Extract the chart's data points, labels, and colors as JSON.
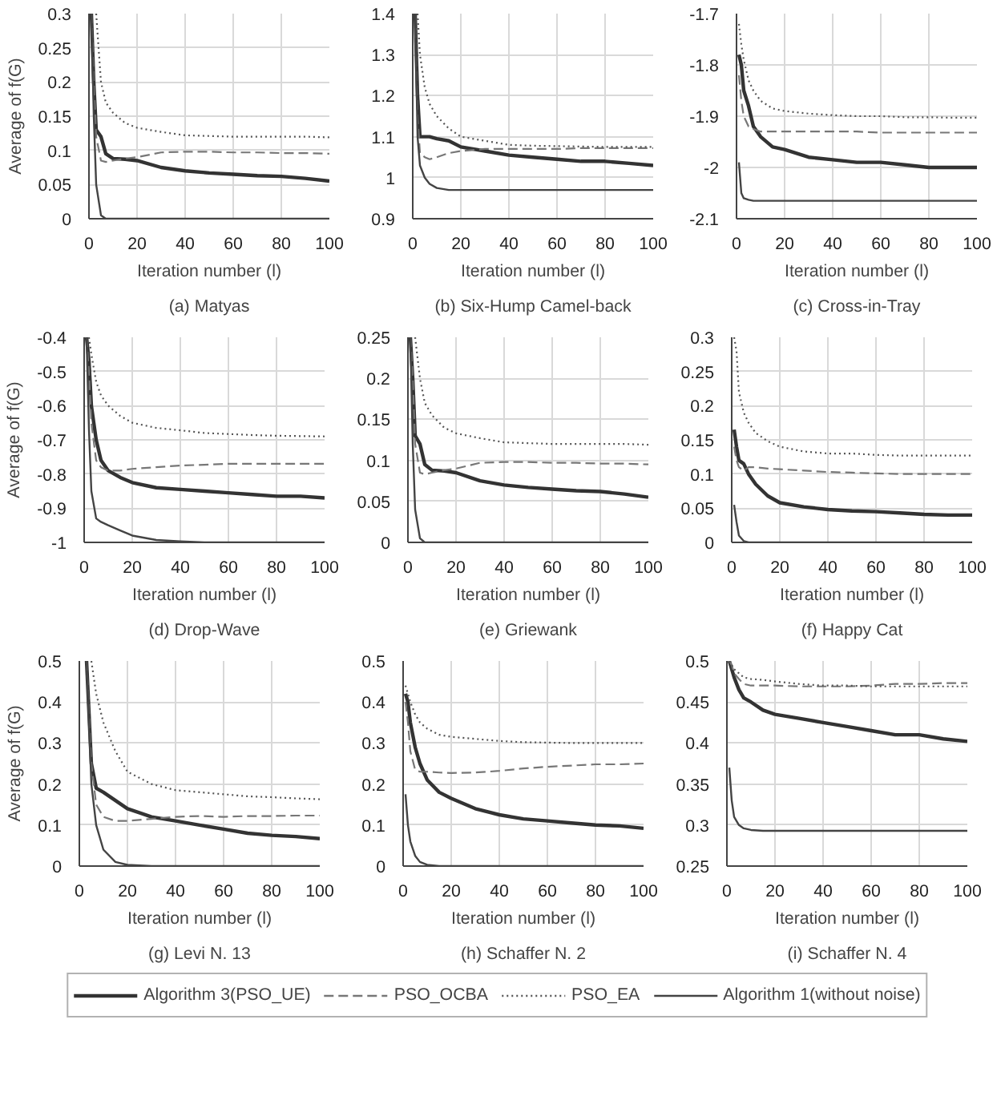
{
  "chart_data": [
    {
      "type": "line",
      "title": "(a) Matyas",
      "xlabel": "Iteration number (l)",
      "ylabel": "Average of f(G)",
      "x": [
        1,
        2,
        3,
        5,
        7,
        10,
        15,
        20,
        30,
        40,
        50,
        60,
        70,
        80,
        90,
        100
      ],
      "xlim": [
        0,
        100
      ],
      "xticks": [
        0,
        20,
        40,
        60,
        80,
        100
      ],
      "ylim": [
        0,
        0.3
      ],
      "yticks": [
        0,
        0.05,
        0.1,
        0.15,
        0.2,
        0.25,
        0.3
      ],
      "grid": true,
      "series": [
        {
          "color": "#333333",
          "line_style": "solid",
          "values": [
            0.3,
            0.2,
            0.13,
            0.12,
            0.095,
            0.088,
            0.087,
            0.085,
            0.075,
            0.07,
            0.067,
            0.065,
            0.063,
            0.062,
            0.059,
            0.055
          ]
        },
        {
          "color": "#777777",
          "line_style": "dashed",
          "values": [
            0.3,
            0.2,
            0.12,
            0.085,
            0.083,
            0.085,
            0.088,
            0.09,
            0.097,
            0.098,
            0.098,
            0.097,
            0.097,
            0.096,
            0.096,
            0.095
          ]
        },
        {
          "color": "#555555",
          "line_style": "dotted",
          "values": [
            null,
            null,
            0.3,
            0.2,
            0.17,
            0.155,
            0.14,
            0.133,
            0.127,
            0.122,
            0.121,
            0.12,
            0.12,
            0.12,
            0.12,
            0.119
          ]
        },
        {
          "color": "#444444",
          "line_style": "solid",
          "values": [
            0.3,
            0.15,
            0.05,
            0.005,
            0,
            0,
            0,
            0,
            0,
            0,
            0,
            0,
            0,
            0,
            0,
            0
          ]
        }
      ]
    },
    {
      "type": "line",
      "title": "(b) Six-Hump Camel-back",
      "xlabel": "Iteration number (l)",
      "x": [
        1,
        2,
        3,
        5,
        7,
        10,
        15,
        20,
        30,
        40,
        50,
        60,
        70,
        80,
        90,
        100
      ],
      "xlim": [
        0,
        100
      ],
      "xticks": [
        0,
        20,
        40,
        60,
        80,
        100
      ],
      "ylim": [
        0.9,
        1.4
      ],
      "yticks": [
        0.9,
        1,
        1.1,
        1.2,
        1.3,
        1.4
      ],
      "grid": true,
      "series": [
        {
          "color": "#333333",
          "line_style": "solid",
          "values": [
            1.4,
            1.2,
            1.1,
            1.1,
            1.1,
            1.095,
            1.09,
            1.075,
            1.065,
            1.055,
            1.05,
            1.045,
            1.04,
            1.04,
            1.035,
            1.03
          ]
        },
        {
          "color": "#777777",
          "line_style": "dashed",
          "values": [
            1.4,
            1.15,
            1.06,
            1.05,
            1.045,
            1.05,
            1.06,
            1.065,
            1.07,
            1.07,
            1.07,
            1.07,
            1.072,
            1.072,
            1.072,
            1.072
          ]
        },
        {
          "color": "#555555",
          "line_style": "dotted",
          "values": [
            null,
            1.4,
            1.3,
            1.22,
            1.18,
            1.15,
            1.12,
            1.1,
            1.09,
            1.08,
            1.078,
            1.077,
            1.076,
            1.075,
            1.075,
            1.075
          ]
        },
        {
          "color": "#444444",
          "line_style": "solid",
          "values": [
            1.4,
            1.1,
            1.03,
            1.0,
            0.985,
            0.975,
            0.97,
            0.97,
            0.97,
            0.97,
            0.97,
            0.97,
            0.97,
            0.97,
            0.97,
            0.97
          ]
        }
      ]
    },
    {
      "type": "line",
      "title": "(c) Cross-in-Tray",
      "xlabel": "Iteration number (l)",
      "x": [
        1,
        2,
        3,
        5,
        7,
        10,
        15,
        20,
        30,
        40,
        50,
        60,
        70,
        80,
        90,
        100
      ],
      "xlim": [
        0,
        100
      ],
      "xticks": [
        0,
        20,
        40,
        60,
        80,
        100
      ],
      "ylim": [
        -2.1,
        -1.7
      ],
      "yticks": [
        -2.1,
        -2,
        -1.9,
        -1.8,
        -1.7
      ],
      "grid": true,
      "series": [
        {
          "color": "#333333",
          "line_style": "solid",
          "values": [
            -1.78,
            -1.8,
            -1.85,
            -1.88,
            -1.92,
            -1.94,
            -1.96,
            -1.965,
            -1.98,
            -1.985,
            -1.99,
            -1.99,
            -1.995,
            -2.0,
            -2.0,
            -2.0
          ]
        },
        {
          "color": "#777777",
          "line_style": "dashed",
          "values": [
            -1.82,
            -1.87,
            -1.9,
            -1.92,
            -1.925,
            -1.93,
            -1.93,
            -1.93,
            -1.93,
            -1.93,
            -1.93,
            -1.932,
            -1.932,
            -1.932,
            -1.932,
            -1.932
          ]
        },
        {
          "color": "#555555",
          "line_style": "dotted",
          "values": [
            -1.72,
            -1.76,
            -1.79,
            -1.83,
            -1.85,
            -1.87,
            -1.885,
            -1.89,
            -1.895,
            -1.898,
            -1.9,
            -1.9,
            -1.902,
            -1.902,
            -1.903,
            -1.903
          ]
        },
        {
          "color": "#444444",
          "line_style": "solid",
          "values": [
            -1.99,
            -2.05,
            -2.06,
            -2.063,
            -2.065,
            -2.065,
            -2.065,
            -2.065,
            -2.065,
            -2.065,
            -2.065,
            -2.065,
            -2.065,
            -2.065,
            -2.065,
            -2.065
          ]
        }
      ]
    },
    {
      "type": "line",
      "title": "(d) Drop-Wave",
      "xlabel": "Iteration number (l)",
      "ylabel": "Average of f(G)",
      "x": [
        1,
        2,
        3,
        5,
        7,
        10,
        15,
        20,
        30,
        40,
        50,
        60,
        70,
        80,
        90,
        100
      ],
      "xlim": [
        0,
        100
      ],
      "xticks": [
        0,
        20,
        40,
        60,
        80,
        100
      ],
      "ylim": [
        -1,
        -0.4
      ],
      "yticks": [
        -1,
        -0.9,
        -0.8,
        -0.7,
        -0.6,
        -0.5,
        -0.4
      ],
      "grid": true,
      "series": [
        {
          "color": "#333333",
          "line_style": "solid",
          "values": [
            -0.4,
            -0.47,
            -0.6,
            -0.7,
            -0.76,
            -0.79,
            -0.81,
            -0.825,
            -0.84,
            -0.845,
            -0.85,
            -0.855,
            -0.86,
            -0.865,
            -0.865,
            -0.87
          ]
        },
        {
          "color": "#777777",
          "line_style": "dashed",
          "values": [
            -0.4,
            -0.5,
            -0.65,
            -0.76,
            -0.78,
            -0.79,
            -0.79,
            -0.785,
            -0.78,
            -0.775,
            -0.773,
            -0.77,
            -0.77,
            -0.77,
            -0.77,
            -0.77
          ]
        },
        {
          "color": "#555555",
          "line_style": "dotted",
          "values": [
            null,
            -0.4,
            -0.45,
            -0.53,
            -0.57,
            -0.6,
            -0.63,
            -0.65,
            -0.665,
            -0.672,
            -0.68,
            -0.683,
            -0.686,
            -0.688,
            -0.689,
            -0.69
          ]
        },
        {
          "color": "#444444",
          "line_style": "solid",
          "values": [
            -0.4,
            -0.67,
            -0.85,
            -0.93,
            -0.94,
            -0.95,
            -0.965,
            -0.98,
            -0.993,
            -0.997,
            -1,
            -1,
            -1,
            -1,
            -1,
            -1
          ]
        }
      ]
    },
    {
      "type": "line",
      "title": "(e) Griewank",
      "xlabel": "Iteration number (l)",
      "x": [
        1,
        2,
        3,
        5,
        7,
        10,
        15,
        20,
        30,
        40,
        50,
        60,
        70,
        80,
        90,
        100
      ],
      "xlim": [
        0,
        100
      ],
      "xticks": [
        0,
        20,
        40,
        60,
        80,
        100
      ],
      "ylim": [
        0,
        0.25
      ],
      "yticks": [
        0,
        0.05,
        0.1,
        0.15,
        0.2,
        0.25
      ],
      "grid": true,
      "series": [
        {
          "color": "#333333",
          "line_style": "solid",
          "values": [
            0.25,
            0.2,
            0.13,
            0.12,
            0.095,
            0.088,
            0.087,
            0.085,
            0.075,
            0.07,
            0.067,
            0.065,
            0.063,
            0.062,
            0.059,
            0.055
          ]
        },
        {
          "color": "#777777",
          "line_style": "dashed",
          "values": [
            0.25,
            0.2,
            0.12,
            0.085,
            0.083,
            0.085,
            0.088,
            0.09,
            0.097,
            0.098,
            0.098,
            0.097,
            0.097,
            0.096,
            0.096,
            0.095
          ]
        },
        {
          "color": "#555555",
          "line_style": "dotted",
          "values": [
            null,
            null,
            0.25,
            0.2,
            0.17,
            0.155,
            0.14,
            0.133,
            0.127,
            0.122,
            0.121,
            0.12,
            0.12,
            0.12,
            0.12,
            0.119
          ]
        },
        {
          "color": "#444444",
          "line_style": "solid",
          "values": [
            0.25,
            0.12,
            0.04,
            0.005,
            0,
            0,
            0,
            0,
            0,
            0,
            0,
            0,
            0,
            0,
            0,
            0
          ]
        }
      ]
    },
    {
      "type": "line",
      "title": "(f) Happy Cat",
      "xlabel": "Iteration number (l)",
      "x": [
        1,
        2,
        3,
        5,
        7,
        10,
        15,
        20,
        30,
        40,
        50,
        60,
        70,
        80,
        90,
        100
      ],
      "xlim": [
        0,
        100
      ],
      "xticks": [
        0,
        20,
        40,
        60,
        80,
        100
      ],
      "ylim": [
        0,
        0.3
      ],
      "yticks": [
        0,
        0.05,
        0.1,
        0.15,
        0.2,
        0.25,
        0.3
      ],
      "grid": true,
      "series": [
        {
          "color": "#333333",
          "line_style": "solid",
          "values": [
            0.165,
            0.14,
            0.12,
            0.115,
            0.1,
            0.085,
            0.068,
            0.058,
            0.052,
            0.048,
            0.046,
            0.045,
            0.043,
            0.041,
            0.04,
            0.04
          ]
        },
        {
          "color": "#777777",
          "line_style": "dashed",
          "values": [
            0.14,
            0.12,
            0.11,
            0.105,
            0.11,
            0.11,
            0.108,
            0.107,
            0.105,
            0.103,
            0.102,
            0.101,
            0.1,
            0.1,
            0.1,
            0.1
          ]
        },
        {
          "color": "#555555",
          "line_style": "dotted",
          "values": [
            0.3,
            0.28,
            0.22,
            0.19,
            0.175,
            0.16,
            0.148,
            0.14,
            0.133,
            0.13,
            0.13,
            0.128,
            0.127,
            0.127,
            0.127,
            0.127
          ]
        },
        {
          "color": "#444444",
          "line_style": "solid",
          "values": [
            0.055,
            0.03,
            0.01,
            0.002,
            0,
            0,
            0,
            0,
            0,
            0,
            0,
            0,
            0,
            0,
            0,
            0
          ]
        }
      ]
    },
    {
      "type": "line",
      "title": "(g) Levi N. 13",
      "xlabel": "Iteration number (l)",
      "ylabel": "Average of f(G)",
      "x": [
        3,
        5,
        7,
        10,
        15,
        20,
        30,
        40,
        50,
        60,
        70,
        80,
        90,
        100
      ],
      "xlim": [
        0,
        100
      ],
      "xticks": [
        0,
        20,
        40,
        60,
        80,
        100
      ],
      "ylim": [
        0,
        0.5
      ],
      "yticks": [
        0,
        0.1,
        0.2,
        0.3,
        0.4,
        0.5
      ],
      "grid": true,
      "series": [
        {
          "color": "#333333",
          "line_style": "solid",
          "values": [
            0.5,
            0.25,
            0.19,
            0.18,
            0.16,
            0.14,
            0.12,
            0.11,
            0.1,
            0.09,
            0.08,
            0.075,
            0.072,
            0.067
          ]
        },
        {
          "color": "#777777",
          "line_style": "dashed",
          "values": [
            0.5,
            0.25,
            0.15,
            0.12,
            0.11,
            0.11,
            0.115,
            0.12,
            0.122,
            0.12,
            0.122,
            0.122,
            0.123,
            0.123
          ]
        },
        {
          "color": "#555555",
          "line_style": "dotted",
          "values": [
            null,
            0.5,
            0.42,
            0.35,
            0.28,
            0.23,
            0.2,
            0.185,
            0.18,
            0.175,
            0.17,
            0.168,
            0.165,
            0.163
          ]
        },
        {
          "color": "#444444",
          "line_style": "solid",
          "values": [
            0.5,
            0.2,
            0.1,
            0.04,
            0.01,
            0.003,
            0,
            0,
            0,
            0,
            0,
            0,
            0,
            0
          ]
        }
      ]
    },
    {
      "type": "line",
      "title": "(h) Schaffer N. 2",
      "xlabel": "Iteration number (l)",
      "x": [
        1,
        2,
        3,
        5,
        7,
        10,
        15,
        20,
        30,
        40,
        50,
        60,
        70,
        80,
        90,
        100
      ],
      "xlim": [
        0,
        100
      ],
      "xticks": [
        0,
        20,
        40,
        60,
        80,
        100
      ],
      "ylim": [
        0,
        0.5
      ],
      "yticks": [
        0,
        0.1,
        0.2,
        0.3,
        0.4,
        0.5
      ],
      "grid": true,
      "series": [
        {
          "color": "#333333",
          "line_style": "solid",
          "values": [
            0.42,
            0.4,
            0.35,
            0.29,
            0.25,
            0.21,
            0.18,
            0.165,
            0.14,
            0.125,
            0.115,
            0.11,
            0.105,
            0.1,
            0.098,
            0.092
          ]
        },
        {
          "color": "#777777",
          "line_style": "dashed",
          "values": [
            0.4,
            0.35,
            0.28,
            0.235,
            0.23,
            0.23,
            0.228,
            0.227,
            0.228,
            0.232,
            0.238,
            0.242,
            0.245,
            0.248,
            0.248,
            0.25
          ]
        },
        {
          "color": "#555555",
          "line_style": "dotted",
          "values": [
            0.44,
            0.42,
            0.4,
            0.37,
            0.35,
            0.335,
            0.32,
            0.315,
            0.31,
            0.305,
            0.302,
            0.301,
            0.3,
            0.3,
            0.3,
            0.3
          ]
        },
        {
          "color": "#444444",
          "line_style": "solid",
          "values": [
            0.175,
            0.1,
            0.06,
            0.025,
            0.01,
            0.003,
            0,
            0,
            0,
            0,
            0,
            0,
            0,
            0,
            0,
            0
          ]
        }
      ]
    },
    {
      "type": "line",
      "title": "(i) Schaffer N. 4",
      "xlabel": "Iteration number (l)",
      "x": [
        1,
        2,
        3,
        5,
        7,
        10,
        15,
        20,
        30,
        40,
        50,
        60,
        70,
        80,
        90,
        100
      ],
      "xlim": [
        0,
        100
      ],
      "xticks": [
        0,
        20,
        40,
        60,
        80,
        100
      ],
      "ylim": [
        0.25,
        0.5
      ],
      "yticks": [
        0.25,
        0.3,
        0.35,
        0.4,
        0.45,
        0.5
      ],
      "grid": true,
      "legend": "bottom",
      "series": [
        {
          "name": "Algorithm 3(PSO_UE)",
          "color": "#333333",
          "line_style": "solid",
          "values": [
            0.5,
            0.49,
            0.48,
            0.465,
            0.455,
            0.45,
            0.44,
            0.435,
            0.43,
            0.425,
            0.42,
            0.415,
            0.41,
            0.41,
            0.405,
            0.402
          ]
        },
        {
          "name": "PSO_OCBA",
          "color": "#777777",
          "line_style": "dashed",
          "values": [
            0.5,
            0.495,
            0.485,
            0.478,
            0.472,
            0.47,
            0.47,
            0.47,
            0.469,
            0.469,
            0.469,
            0.47,
            0.472,
            0.472,
            0.473,
            0.473
          ]
        },
        {
          "name": "PSO_EA",
          "color": "#555555",
          "line_style": "dotted",
          "values": [
            0.5,
            0.495,
            0.49,
            0.485,
            0.48,
            0.478,
            0.477,
            0.475,
            0.472,
            0.47,
            0.47,
            0.469,
            0.469,
            0.469,
            0.469,
            0.469
          ]
        },
        {
          "name": "Algorithm 1(without noise)",
          "color": "#444444",
          "line_style": "solid",
          "values": [
            0.37,
            0.33,
            0.31,
            0.3,
            0.296,
            0.294,
            0.293,
            0.293,
            0.293,
            0.293,
            0.293,
            0.293,
            0.293,
            0.293,
            0.293,
            0.293
          ]
        }
      ]
    }
  ]
}
